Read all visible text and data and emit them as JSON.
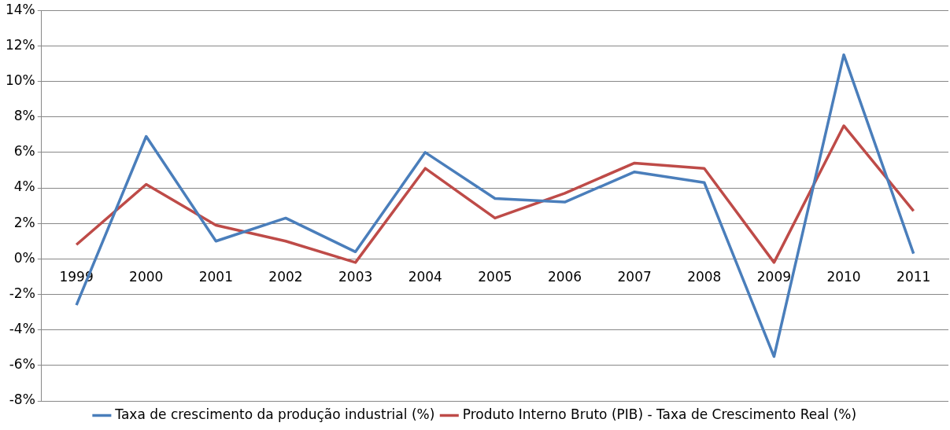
{
  "chart_data": {
    "type": "line",
    "categories": [
      "1999",
      "2000",
      "2001",
      "2002",
      "2003",
      "2004",
      "2005",
      "2006",
      "2007",
      "2008",
      "2009",
      "2010",
      "2011"
    ],
    "series": [
      {
        "name": "Taxa de crescimento da produção industrial (%)",
        "color": "#4a7ebb",
        "values": [
          -2.6,
          6.9,
          1.0,
          2.3,
          0.4,
          6.0,
          3.4,
          3.2,
          4.9,
          4.3,
          -5.5,
          11.5,
          0.3
        ]
      },
      {
        "name": "Produto Interno Bruto (PIB) - Taxa de Crescimento Real (%)",
        "color": "#be4b48",
        "values": [
          0.8,
          4.2,
          1.9,
          1.0,
          -0.2,
          5.1,
          2.3,
          3.7,
          5.4,
          5.1,
          -0.2,
          7.5,
          2.7
        ]
      }
    ],
    "ylim": [
      -8,
      14
    ],
    "yticks": [
      {
        "value": -8,
        "label": "-8%"
      },
      {
        "value": -6,
        "label": "-6%"
      },
      {
        "value": -4,
        "label": "-4%"
      },
      {
        "value": -2,
        "label": "-2%"
      },
      {
        "value": 0,
        "label": "0%"
      },
      {
        "value": 2,
        "label": "2%"
      },
      {
        "value": 4,
        "label": "4%"
      },
      {
        "value": 6,
        "label": "6%"
      },
      {
        "value": 8,
        "label": "8%"
      },
      {
        "value": 10,
        "label": "10%"
      },
      {
        "value": 12,
        "label": "12%"
      },
      {
        "value": 14,
        "label": "14%"
      }
    ],
    "grid": "y",
    "legend": "bottom",
    "marker": "none"
  }
}
